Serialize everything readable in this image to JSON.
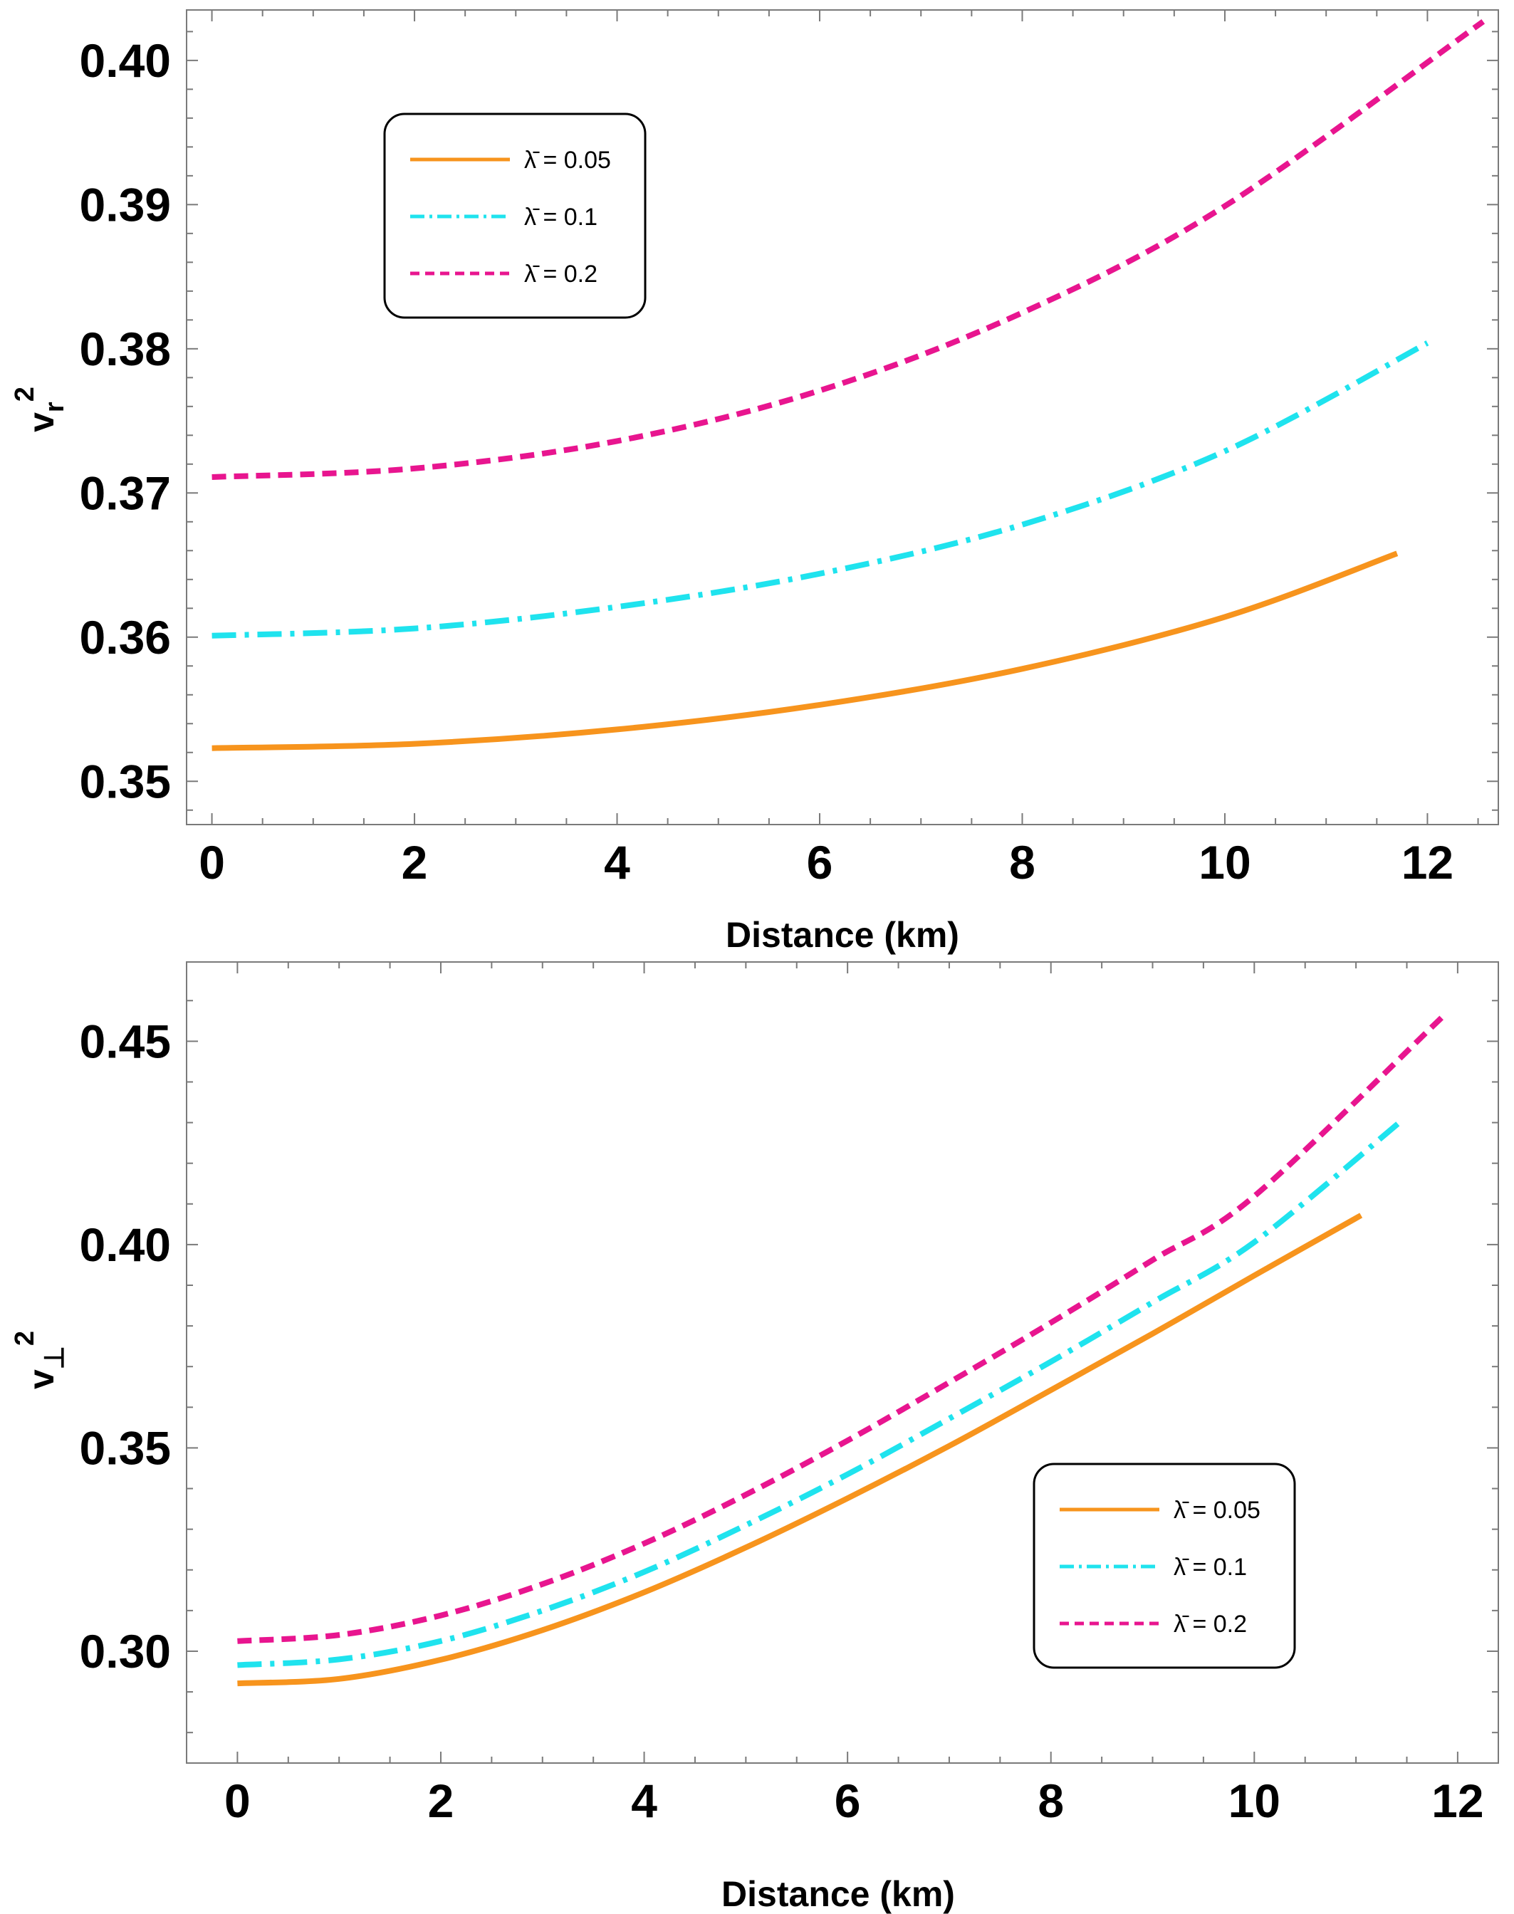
{
  "chart_data": [
    {
      "type": "line",
      "xlabel": "Distance (km)",
      "ylabel": {
        "base": "v",
        "sub": "r",
        "sup": "2"
      },
      "xlim": [
        -0.25,
        12.7
      ],
      "ylim": [
        0.347,
        0.4035
      ],
      "xticks": [
        0,
        2,
        4,
        6,
        8,
        10,
        12
      ],
      "yticks": [
        0.35,
        0.36,
        0.37,
        0.38,
        0.39,
        0.4
      ],
      "ytick_labels": [
        "0.35",
        "0.36",
        "0.37",
        "0.38",
        "0.39",
        "0.40"
      ],
      "legend": "top-left",
      "series": [
        {
          "name": "λ̄ = 0.05",
          "color": "#f7941d",
          "dash": "solid",
          "x": [
            0,
            2,
            4,
            6,
            8,
            10,
            11.7
          ],
          "y": [
            0.3523,
            0.3526,
            0.3536,
            0.3553,
            0.3578,
            0.3614,
            0.3658
          ]
        },
        {
          "name": "λ̄ = 0.1",
          "color": "#1fe3ee",
          "dash": "dashdot",
          "x": [
            0,
            2,
            4,
            6,
            8,
            10,
            12
          ],
          "y": [
            0.3601,
            0.3606,
            0.3621,
            0.3644,
            0.3678,
            0.3729,
            0.3804
          ]
        },
        {
          "name": "λ̄ = 0.2",
          "color": "#e8158f",
          "dash": "dash",
          "x": [
            0,
            2,
            4,
            6,
            8,
            10,
            12.55
          ],
          "y": [
            0.3711,
            0.3717,
            0.3736,
            0.3771,
            0.3825,
            0.3899,
            0.4027
          ]
        }
      ]
    },
    {
      "type": "line",
      "xlabel": "Distance (km)",
      "ylabel": {
        "base": "v",
        "sub": "⊥",
        "sup": "2"
      },
      "xlim": [
        -0.5,
        12.4
      ],
      "ylim": [
        0.2725,
        0.4695
      ],
      "xticks": [
        0,
        2,
        4,
        6,
        8,
        10,
        12
      ],
      "yticks": [
        0.3,
        0.35,
        0.4,
        0.45
      ],
      "ytick_labels": [
        "0.30",
        "0.35",
        "0.40",
        "0.45"
      ],
      "legend": "bottom-right",
      "series": [
        {
          "name": "λ̄ = 0.05",
          "color": "#f7941d",
          "dash": "solid",
          "x": [
            0,
            1,
            2,
            3,
            4,
            5,
            6,
            7,
            8,
            9,
            10,
            11.05
          ],
          "y": [
            0.2921,
            0.2932,
            0.2979,
            0.3052,
            0.3145,
            0.3255,
            0.3376,
            0.3505,
            0.3642,
            0.3781,
            0.3924,
            0.4072
          ]
        },
        {
          "name": "λ̄ = 0.1",
          "color": "#1fe3ee",
          "dash": "dashdot",
          "x": [
            0,
            1,
            2,
            3,
            4,
            5,
            6,
            7,
            8,
            9,
            10,
            11.45
          ],
          "y": [
            0.2966,
            0.298,
            0.3025,
            0.31,
            0.3195,
            0.331,
            0.3435,
            0.3572,
            0.3712,
            0.3858,
            0.4006,
            0.4305
          ]
        },
        {
          "name": "λ̄ = 0.2",
          "color": "#e8158f",
          "dash": "dash",
          "x": [
            0,
            1,
            2,
            3,
            4,
            5,
            6,
            7,
            8,
            9,
            10,
            11.85
          ],
          "y": [
            0.3025,
            0.304,
            0.3088,
            0.3165,
            0.3265,
            0.3385,
            0.3518,
            0.3661,
            0.3808,
            0.3962,
            0.4119,
            0.456
          ]
        }
      ]
    }
  ]
}
